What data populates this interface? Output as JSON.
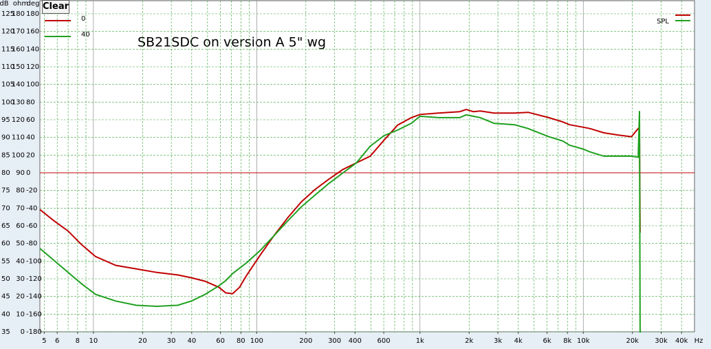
{
  "button": "Clear",
  "chart_data": {
    "type": "line",
    "annotation": "SB21SDC on version A  5\" wg",
    "ylabel": "dB",
    "y2label": "ohm",
    "y3label": "deg",
    "xlabel": "Hz",
    "xscale": "log",
    "grid": true,
    "xlim": [
      4.7,
      48000
    ],
    "xticks": [
      5,
      6,
      8,
      10,
      20,
      30,
      40,
      60,
      80,
      100,
      200,
      300,
      400,
      600,
      {
        "value": 1000,
        "label": "1k"
      },
      {
        "value": 2000,
        "label": "2k"
      },
      {
        "value": 3000,
        "label": "3k"
      },
      {
        "value": 4000,
        "label": "4k"
      },
      {
        "value": 6000,
        "label": "6k"
      },
      {
        "value": 8000,
        "label": "8k"
      },
      {
        "value": 10000,
        "label": "10k"
      },
      {
        "value": 20000,
        "label": "20k"
      },
      {
        "value": 30000,
        "label": "30k"
      },
      {
        "value": 40000,
        "label": "40k"
      }
    ],
    "ylim": [
      35,
      125
    ],
    "yticks": [
      35,
      40,
      45,
      50,
      55,
      60,
      65,
      70,
      75,
      80,
      85,
      90,
      95,
      100,
      105,
      110,
      115,
      120,
      125
    ],
    "y2lim": [
      0,
      180
    ],
    "y2ticks": [
      0,
      10,
      20,
      30,
      40,
      50,
      60,
      70,
      80,
      90,
      100,
      110,
      120,
      130,
      140,
      150,
      160,
      170,
      180
    ],
    "y3lim": [
      -180,
      180
    ],
    "y3ticks": [
      -180,
      -160,
      -140,
      -120,
      -100,
      -80,
      -60,
      -40,
      -20,
      0,
      20,
      40,
      60,
      80,
      100,
      120,
      140,
      160,
      180
    ],
    "reference_line": {
      "value": 80,
      "color": "#c00000"
    },
    "legend2_label": "SPL",
    "x": [
      4.7,
      5.7,
      7,
      8.4,
      10.3,
      13.7,
      18.3,
      24.5,
      32.8,
      39.8,
      48.3,
      58.6,
      64.7,
      71.3,
      78.5,
      86.5,
      105,
      127,
      155,
      188,
      228,
      277,
      336,
      408,
      495,
      601,
      730,
      885,
      1000,
      1300,
      1750,
      1920,
      2120,
      2340,
      2840,
      3790,
      4600,
      6150,
      7480,
      8240,
      10000,
      11000,
      13400,
      16300,
      19700,
      21700,
      22100,
      22300,
      22600
    ],
    "series": [
      {
        "name": "0",
        "color": "#c00000",
        "values": [
          69.6,
          66.5,
          63.5,
          59.8,
          56.3,
          53.8,
          52.8,
          51.8,
          51.1,
          50.3,
          49.3,
          47.6,
          46.0,
          45.8,
          47.6,
          50.9,
          56.7,
          62.1,
          67.3,
          71.8,
          75.3,
          78.2,
          80.9,
          82.8,
          84.7,
          89.2,
          93.5,
          95.6,
          96.5,
          96.9,
          97.3,
          97.9,
          97.3,
          97.5,
          96.9,
          96.9,
          97.1,
          95.6,
          94.4,
          93.6,
          92.9,
          92.5,
          91.3,
          90.7,
          90.2,
          92.5,
          92.1,
          63.1,
          null
        ]
      },
      {
        "name": "40",
        "color": "#1fa01f",
        "values": [
          58.6,
          55.3,
          51.8,
          48.7,
          45.6,
          43.7,
          42.5,
          42.2,
          42.5,
          43.7,
          45.6,
          48.0,
          49.5,
          51.5,
          53.0,
          54.5,
          58.0,
          62.1,
          66.4,
          70.4,
          73.7,
          77.0,
          79.9,
          82.8,
          87.5,
          90.5,
          92.1,
          94.0,
          96.0,
          95.6,
          95.6,
          96.4,
          96.0,
          95.6,
          94.0,
          93.6,
          92.5,
          90.2,
          89.0,
          87.8,
          86.7,
          85.9,
          84.7,
          84.7,
          84.7,
          84.4,
          97.5,
          35,
          35
        ]
      }
    ]
  }
}
